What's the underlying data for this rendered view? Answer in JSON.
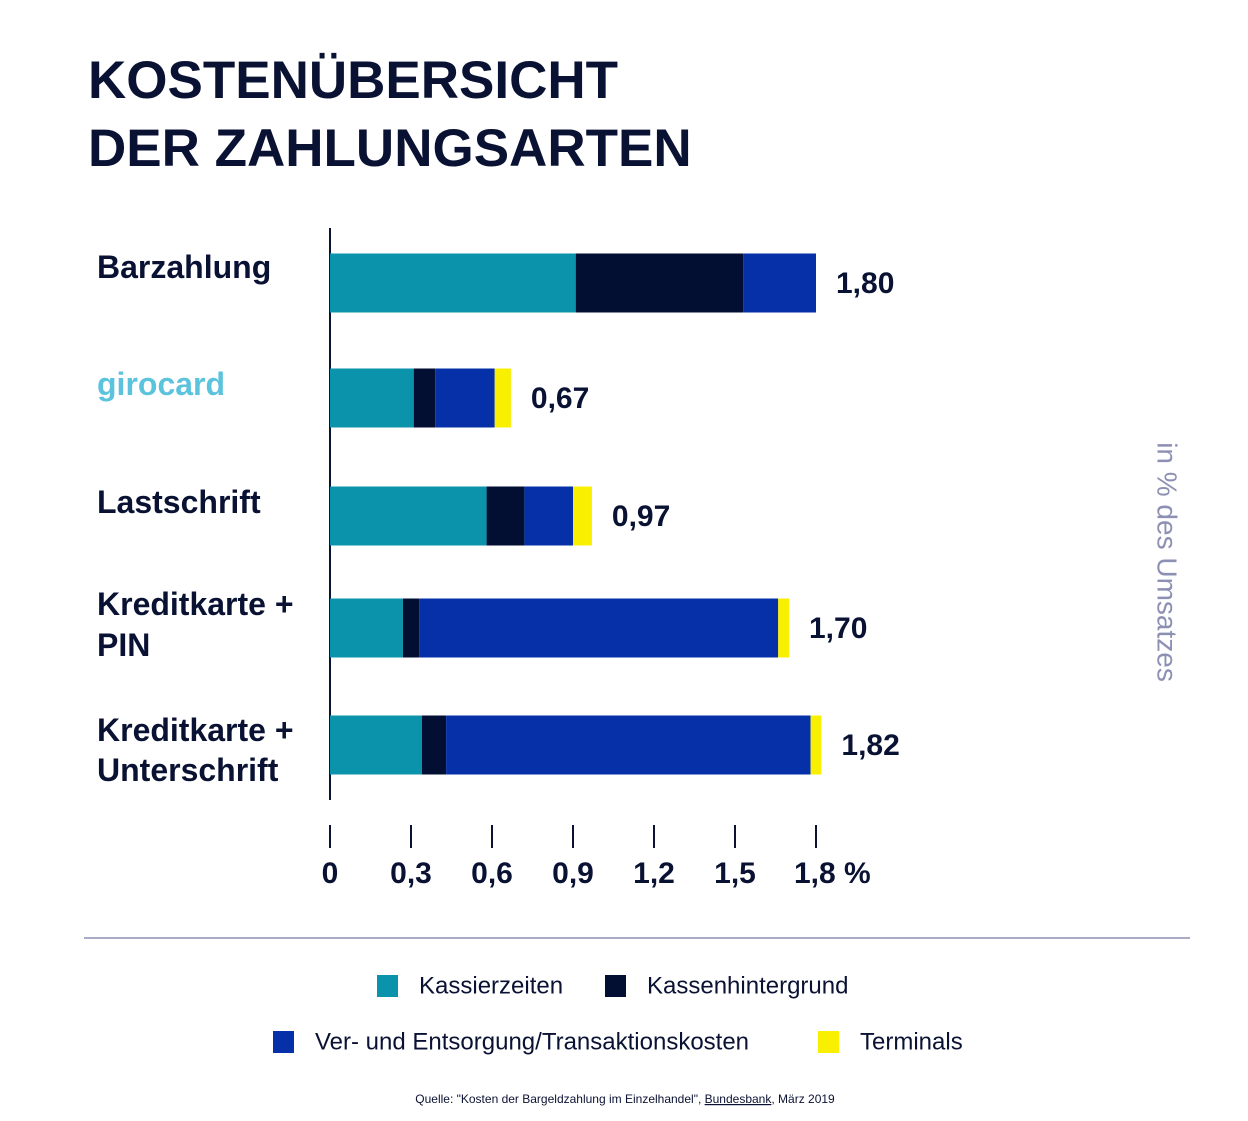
{
  "chart_data": {
    "type": "stacked_bar_horizontal",
    "title": [
      "KOSTENÜBERSICHT",
      "DER ZAHLUNGSARTEN"
    ],
    "categories": [
      [
        "Barzahlung"
      ],
      [
        "girocard"
      ],
      [
        "Lastschrift"
      ],
      [
        "Kreditkarte +",
        "PIN"
      ],
      [
        "Kreditkarte +",
        "Unterschrift"
      ]
    ],
    "series": [
      {
        "name": "Kassierzeiten",
        "color": "#0a93aa",
        "values": [
          0.91,
          0.31,
          0.58,
          0.27,
          0.34
        ]
      },
      {
        "name": "Kassenhintergrund",
        "color": "#020f33",
        "values": [
          0.62,
          0.08,
          0.14,
          0.06,
          0.09
        ]
      },
      {
        "name": "Ver- und Entsorgung/Transaktionskosten",
        "color": "#0530a8",
        "values": [
          0.27,
          0.22,
          0.18,
          1.33,
          1.35
        ]
      },
      {
        "name": "Terminals",
        "color": "#f8f000",
        "values": [
          0,
          0.06,
          0.07,
          0.04,
          0.04
        ]
      }
    ],
    "totals": [
      1.8,
      0.67,
      0.97,
      1.7,
      1.82
    ],
    "total_labels": [
      "1,80",
      "0,67",
      "0,97",
      "1,70",
      "1,82"
    ],
    "xlim": [
      0,
      1.8
    ],
    "xticks": [
      0,
      {
        "value": 0.3,
        "label": "0,3"
      },
      {
        "value": 0.6,
        "label": "0,6"
      },
      {
        "value": 0.9,
        "label": "0,9"
      },
      {
        "value": 1.2,
        "label": "1,2"
      },
      {
        "value": 1.5,
        "label": "1,5"
      },
      {
        "value": 1.8,
        "label": "1,8 %"
      }
    ],
    "axis_label": "in % des Umsatzes",
    "source": [
      "Quelle: \"Kosten der Bargeldzahlung im Einzelhandel\", ",
      "Bundesbank",
      ", März 2019"
    ]
  }
}
